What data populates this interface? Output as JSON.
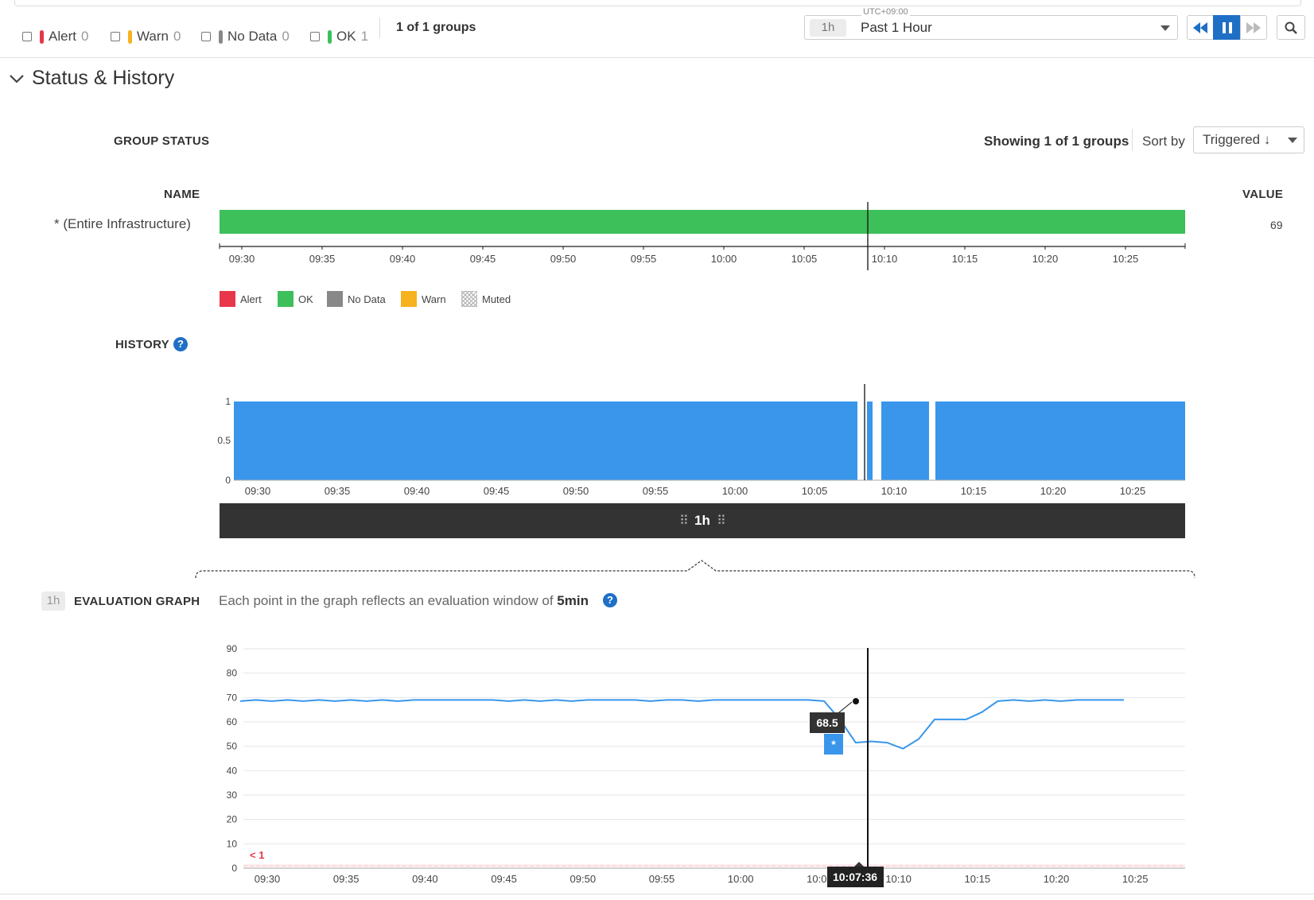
{
  "filters": {
    "items": [
      {
        "label": "Alert",
        "count": "0",
        "color": "#e8374a"
      },
      {
        "label": "Warn",
        "count": "0",
        "color": "#f7b21f"
      },
      {
        "label": "No Data",
        "count": "0",
        "color": "#888888"
      },
      {
        "label": "OK",
        "count": "1",
        "color": "#3dbf5a"
      }
    ],
    "groups_summary": "1 of 1 groups"
  },
  "timepicker": {
    "timezone": "UTC+09:00",
    "chip": "1h",
    "value": "Past 1 Hour"
  },
  "controls": {
    "rewind": "rewind-icon",
    "pause": "pause-icon",
    "forward": "fast-forward-icon",
    "zoom": "zoom-icon"
  },
  "section": {
    "title": "Status & History"
  },
  "group_status": {
    "title": "GROUP STATUS",
    "showing": "Showing 1 of 1 groups",
    "sort_label": "Sort by",
    "sort_value": "Triggered ↓",
    "name_header": "NAME",
    "value_header": "VALUE",
    "row_name": "* (Entire Infrastructure)",
    "row_value": "69",
    "bar_color": "#3dbf5a",
    "ticks": [
      "09:30",
      "09:35",
      "09:40",
      "09:45",
      "09:50",
      "09:55",
      "10:00",
      "10:05",
      "10:10",
      "10:15",
      "10:20",
      "10:25"
    ]
  },
  "legend": [
    {
      "label": "Alert",
      "color": "#e8374a"
    },
    {
      "label": "OK",
      "color": "#3dbf5a"
    },
    {
      "label": "No Data",
      "color": "#888888"
    },
    {
      "label": "Warn",
      "color": "#f7b21f"
    },
    {
      "label": "Muted",
      "color": "pattern"
    }
  ],
  "history": {
    "title": "HISTORY",
    "y_ticks": [
      "1",
      "0.5",
      "0"
    ],
    "x_ticks": [
      "09:30",
      "09:35",
      "09:40",
      "09:45",
      "09:50",
      "09:55",
      "10:00",
      "10:05",
      "10:10",
      "10:15",
      "10:20",
      "10:25"
    ],
    "fill_color": "#3996ea",
    "brush_label": "1h"
  },
  "evaluation": {
    "chip": "1h",
    "title": "EVALUATION GRAPH",
    "description_prefix": "Each point in the graph reflects an evaluation window of",
    "description_bold": "5min",
    "threshold_label": "< 1",
    "tooltip_value": "68.5",
    "tooltip_marker": "*",
    "cursor_time": "10:07:36"
  },
  "chart_data": {
    "type": "line",
    "y_ticks": [
      0,
      10,
      20,
      30,
      40,
      50,
      60,
      70,
      80,
      90
    ],
    "x_ticks": [
      "09:30",
      "09:35",
      "09:40",
      "09:45",
      "09:50",
      "09:55",
      "10:00",
      "10:05",
      "10:10",
      "10:15",
      "10:20",
      "10:25"
    ],
    "ylim": [
      0,
      90
    ],
    "threshold": 1,
    "series": [
      {
        "x_minutes": [
          0,
          1,
          2,
          3,
          4,
          5,
          6,
          7,
          8,
          9,
          10,
          11,
          12,
          13,
          14,
          15,
          16,
          17,
          18,
          19,
          20,
          21,
          22,
          23,
          24,
          25,
          26,
          27,
          28,
          29,
          30,
          31,
          32,
          33,
          34,
          35,
          36,
          37,
          38,
          39,
          40,
          41,
          42,
          43,
          44,
          45,
          46,
          47,
          48,
          49,
          50,
          51,
          52,
          53,
          54,
          55,
          56
        ],
        "values": [
          68.5,
          69,
          68.5,
          69,
          68.5,
          69,
          68.5,
          69,
          68.5,
          69,
          68.5,
          69,
          69,
          69,
          69,
          69,
          69,
          68.5,
          69,
          68.5,
          69,
          68.5,
          69,
          69,
          69,
          69,
          68.5,
          69,
          69,
          68.5,
          69,
          69,
          69,
          69,
          69,
          69,
          69,
          68.5,
          61,
          51.5,
          52,
          51.5,
          49,
          53,
          61,
          61,
          61,
          64,
          68.5,
          69,
          68.5,
          69,
          68.5,
          69,
          69,
          69,
          69
        ]
      }
    ]
  }
}
